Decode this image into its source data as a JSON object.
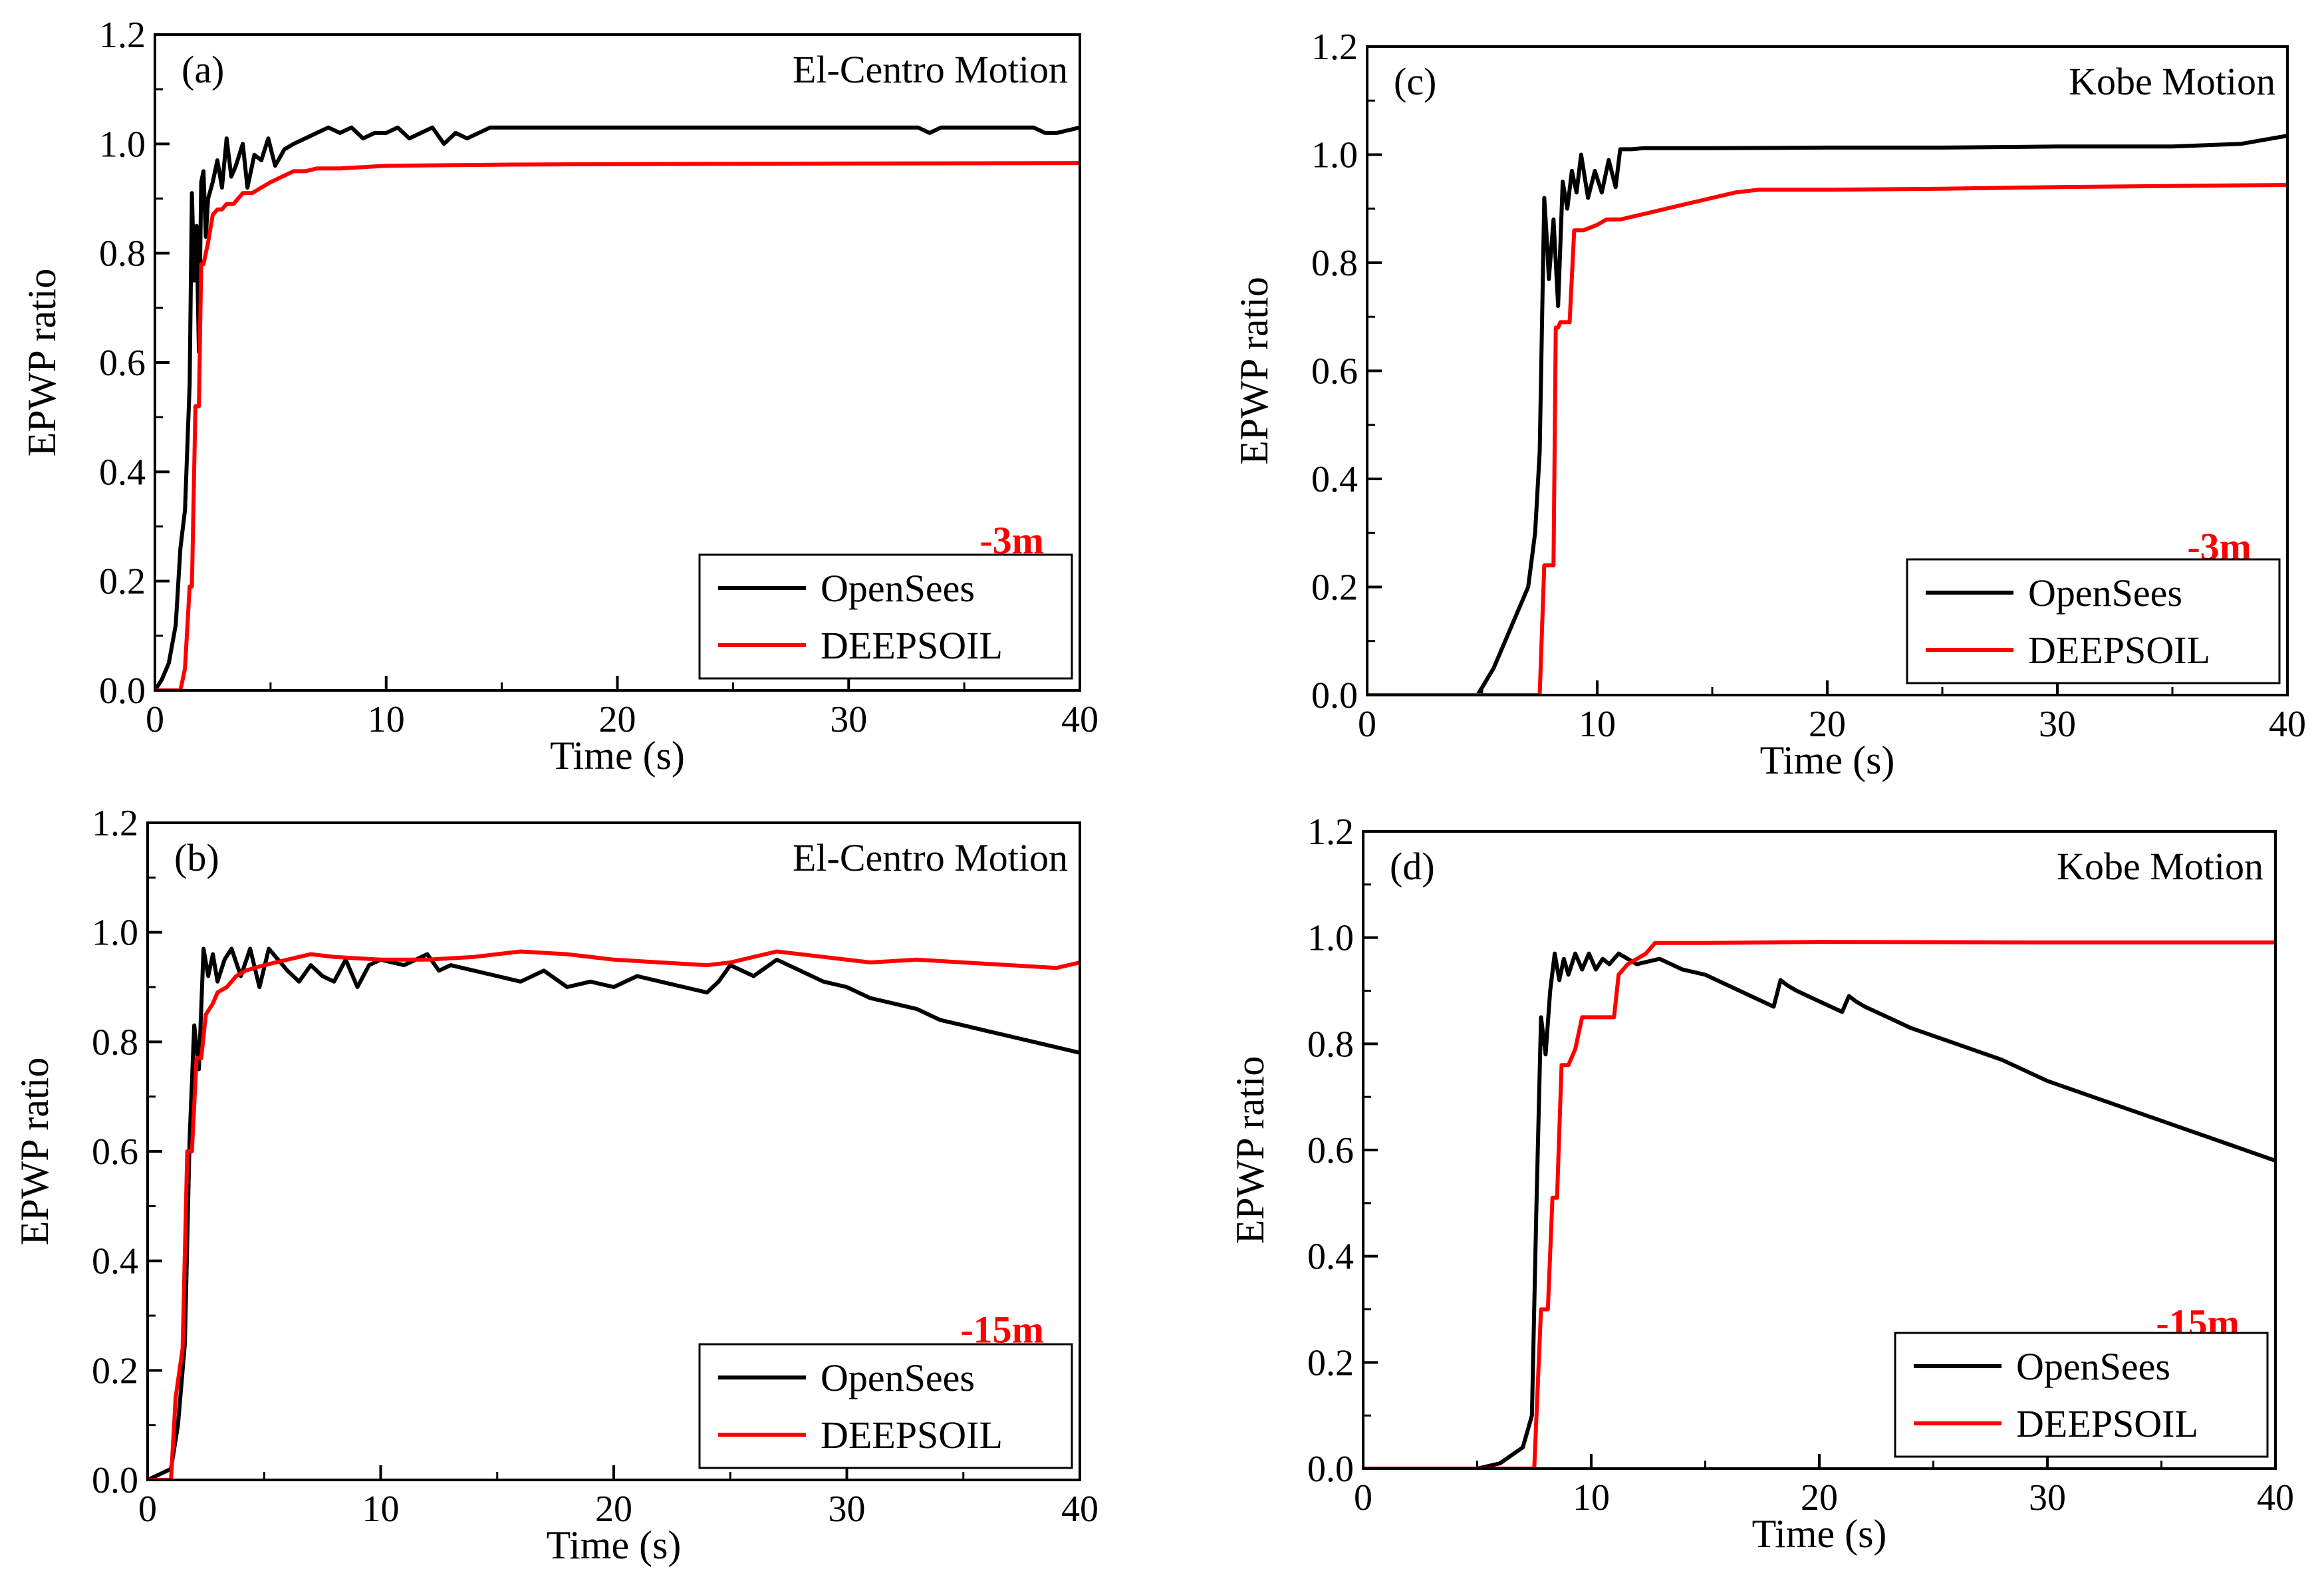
{
  "figure": {
    "series_colors": {
      "OpenSees": "#000000",
      "DEEPSOIL": "#ff0000"
    },
    "label_color": "#ff0000"
  },
  "chart_data": [
    {
      "type": "line",
      "panel": "(a)",
      "title": "El-Centro Motion",
      "depth_label": "-3m",
      "xlabel": "Time (s)",
      "ylabel": "EPWP ratio",
      "xlim": [
        0,
        40
      ],
      "ylim": [
        0,
        1.2
      ],
      "xticks": [
        0,
        10,
        20,
        30,
        40
      ],
      "yticks": [
        0.0,
        0.2,
        0.4,
        0.6,
        0.8,
        1.0,
        1.2
      ],
      "ytick_labels": [
        "0.0",
        "0.2",
        "0.4",
        "0.6",
        "0.8",
        "1.0",
        "1.2"
      ],
      "legend": "bottom-right",
      "series": [
        {
          "name": "OpenSees",
          "x": [
            0,
            0.3,
            0.6,
            0.9,
            1.1,
            1.3,
            1.5,
            1.6,
            1.7,
            1.8,
            1.9,
            2.0,
            2.1,
            2.2,
            2.3,
            2.5,
            2.7,
            2.9,
            3.1,
            3.3,
            3.5,
            3.8,
            4.0,
            4.3,
            4.6,
            4.9,
            5.2,
            5.6,
            6.0,
            6.5,
            7.0,
            7.5,
            8.0,
            8.5,
            9.0,
            9.5,
            10.0,
            10.5,
            11.0,
            11.5,
            12.0,
            12.5,
            13.0,
            13.5,
            14.0,
            14.5,
            15.0,
            20.0,
            25.0,
            30.0,
            33.0,
            33.5,
            34.0,
            38.0,
            38.5,
            39.0,
            40.0
          ],
          "values": [
            0.0,
            0.02,
            0.05,
            0.12,
            0.26,
            0.33,
            0.56,
            0.91,
            0.75,
            0.85,
            0.62,
            0.93,
            0.95,
            0.83,
            0.9,
            0.93,
            0.97,
            0.92,
            1.01,
            0.94,
            0.96,
            1.0,
            0.92,
            0.98,
            0.97,
            1.01,
            0.96,
            0.99,
            1.0,
            1.01,
            1.02,
            1.03,
            1.02,
            1.03,
            1.01,
            1.02,
            1.02,
            1.03,
            1.01,
            1.02,
            1.03,
            1.0,
            1.02,
            1.01,
            1.02,
            1.03,
            1.03,
            1.03,
            1.03,
            1.03,
            1.03,
            1.02,
            1.03,
            1.03,
            1.02,
            1.02,
            1.03
          ]
        },
        {
          "name": "DEEPSOIL",
          "x": [
            0,
            1.1,
            1.3,
            1.5,
            1.6,
            1.75,
            1.9,
            2.0,
            2.1,
            2.3,
            2.5,
            2.7,
            2.9,
            3.1,
            3.4,
            3.8,
            4.2,
            4.6,
            5.0,
            5.5,
            6.0,
            6.5,
            7.0,
            8.0,
            10.0,
            15.0,
            20.0,
            30.0,
            40.0
          ],
          "values": [
            0.0,
            0.0,
            0.04,
            0.19,
            0.19,
            0.52,
            0.52,
            0.78,
            0.78,
            0.82,
            0.87,
            0.88,
            0.88,
            0.89,
            0.89,
            0.91,
            0.91,
            0.92,
            0.93,
            0.94,
            0.95,
            0.95,
            0.955,
            0.955,
            0.96,
            0.962,
            0.963,
            0.964,
            0.965
          ]
        }
      ]
    },
    {
      "type": "line",
      "panel": "(b)",
      "title": "El-Centro Motion",
      "depth_label": "-15m",
      "xlabel": "Time (s)",
      "ylabel": "EPWP ratio",
      "xlim": [
        0,
        40
      ],
      "ylim": [
        0,
        1.2
      ],
      "xticks": [
        0,
        10,
        20,
        30,
        40
      ],
      "yticks": [
        0.0,
        0.2,
        0.4,
        0.6,
        0.8,
        1.0,
        1.2
      ],
      "ytick_labels": [
        "0.0",
        "0.2",
        "0.4",
        "0.6",
        "0.8",
        "1.0",
        "1.2"
      ],
      "legend": "bottom-right",
      "series": [
        {
          "name": "OpenSees",
          "x": [
            0,
            0.5,
            1.0,
            1.3,
            1.6,
            1.8,
            2.0,
            2.2,
            2.4,
            2.6,
            2.8,
            3.0,
            3.3,
            3.6,
            4.0,
            4.4,
            4.8,
            5.2,
            5.6,
            6.0,
            6.5,
            7.0,
            7.5,
            8.0,
            8.5,
            9.0,
            9.5,
            10.0,
            11.0,
            12.0,
            12.5,
            13.0,
            14.0,
            15.0,
            16.0,
            17.0,
            18.0,
            19.0,
            20.0,
            21.0,
            22.0,
            23.0,
            24.0,
            24.5,
            25.0,
            26.0,
            27.0,
            28.0,
            29.0,
            30.0,
            31.0,
            32.0,
            33.0,
            34.0,
            35.0,
            36.0,
            37.0,
            38.0,
            39.0,
            40.0
          ],
          "values": [
            0.0,
            0.01,
            0.02,
            0.1,
            0.25,
            0.62,
            0.83,
            0.75,
            0.97,
            0.92,
            0.96,
            0.91,
            0.95,
            0.97,
            0.92,
            0.97,
            0.9,
            0.97,
            0.95,
            0.93,
            0.91,
            0.94,
            0.92,
            0.91,
            0.95,
            0.9,
            0.94,
            0.95,
            0.94,
            0.96,
            0.93,
            0.94,
            0.93,
            0.92,
            0.91,
            0.93,
            0.9,
            0.91,
            0.9,
            0.92,
            0.91,
            0.9,
            0.89,
            0.91,
            0.94,
            0.92,
            0.95,
            0.93,
            0.91,
            0.9,
            0.88,
            0.87,
            0.86,
            0.84,
            0.83,
            0.82,
            0.81,
            0.8,
            0.79,
            0.78
          ]
        },
        {
          "name": "DEEPSOIL",
          "x": [
            0,
            1.0,
            1.2,
            1.5,
            1.7,
            1.9,
            2.1,
            2.3,
            2.5,
            2.8,
            3.0,
            3.4,
            3.8,
            4.2,
            5.0,
            6.0,
            7.0,
            8.0,
            10.0,
            12.0,
            14.0,
            16.0,
            18.0,
            20.0,
            22.0,
            24.0,
            25.0,
            26.0,
            27.0,
            29.0,
            31.0,
            33.0,
            35.0,
            37.0,
            39.0,
            40.0
          ],
          "values": [
            0.0,
            0.0,
            0.15,
            0.24,
            0.6,
            0.6,
            0.77,
            0.77,
            0.85,
            0.87,
            0.89,
            0.9,
            0.92,
            0.93,
            0.94,
            0.95,
            0.96,
            0.955,
            0.95,
            0.95,
            0.955,
            0.965,
            0.96,
            0.95,
            0.945,
            0.94,
            0.945,
            0.955,
            0.965,
            0.955,
            0.945,
            0.95,
            0.945,
            0.94,
            0.935,
            0.945
          ]
        }
      ]
    },
    {
      "type": "line",
      "panel": "(c)",
      "title": "Kobe Motion",
      "depth_label": "-3m",
      "xlabel": "Time (s)",
      "ylabel": "EPWP ratio",
      "xlim": [
        0,
        40
      ],
      "ylim": [
        0,
        1.2
      ],
      "xticks": [
        0,
        10,
        20,
        30,
        40
      ],
      "yticks": [
        0.0,
        0.2,
        0.4,
        0.6,
        0.8,
        1.0,
        1.2
      ],
      "ytick_labels": [
        "0.0",
        "0.2",
        "0.4",
        "0.6",
        "0.8",
        "1.0",
        "1.2"
      ],
      "legend": "bottom-right",
      "series": [
        {
          "name": "OpenSees",
          "x": [
            0,
            4.8,
            5.5,
            6.0,
            6.5,
            7.0,
            7.3,
            7.5,
            7.7,
            7.8,
            7.9,
            8.1,
            8.3,
            8.5,
            8.7,
            8.9,
            9.1,
            9.3,
            9.6,
            9.9,
            10.2,
            10.5,
            10.8,
            11.0,
            11.5,
            12.0,
            15.0,
            20.0,
            25.0,
            30.0,
            35.0,
            38.0,
            40.0
          ],
          "values": [
            0.0,
            0.0,
            0.05,
            0.1,
            0.15,
            0.2,
            0.3,
            0.45,
            0.92,
            0.85,
            0.77,
            0.88,
            0.72,
            0.95,
            0.9,
            0.97,
            0.93,
            1.0,
            0.92,
            0.97,
            0.93,
            0.99,
            0.94,
            1.01,
            1.01,
            1.012,
            1.012,
            1.013,
            1.013,
            1.015,
            1.015,
            1.02,
            1.035
          ]
        },
        {
          "name": "DEEPSOIL",
          "x": [
            0,
            7.5,
            7.7,
            8.1,
            8.2,
            8.3,
            8.4,
            8.8,
            9.0,
            9.4,
            10.0,
            10.4,
            11.0,
            12.0,
            13.0,
            14.0,
            15.0,
            16.0,
            17.0,
            20.0,
            25.0,
            30.0,
            35.0,
            40.0
          ],
          "values": [
            0.0,
            0.0,
            0.24,
            0.24,
            0.68,
            0.68,
            0.69,
            0.69,
            0.86,
            0.86,
            0.87,
            0.88,
            0.88,
            0.89,
            0.9,
            0.91,
            0.92,
            0.93,
            0.935,
            0.935,
            0.937,
            0.94,
            0.942,
            0.944
          ]
        }
      ]
    },
    {
      "type": "line",
      "panel": "(d)",
      "title": "Kobe Motion",
      "depth_label": "-15m",
      "xlabel": "Time (s)",
      "ylabel": "EPWP ratio",
      "xlim": [
        0,
        40
      ],
      "ylim": [
        0,
        1.2
      ],
      "xticks": [
        0,
        10,
        20,
        30,
        40
      ],
      "yticks": [
        0.0,
        0.2,
        0.4,
        0.6,
        0.8,
        1.0,
        1.2
      ],
      "ytick_labels": [
        "0.0",
        "0.2",
        "0.4",
        "0.6",
        "0.8",
        "1.0",
        "1.2"
      ],
      "legend": "bottom-right",
      "series": [
        {
          "name": "OpenSees",
          "x": [
            0,
            5.0,
            6.0,
            7.0,
            7.4,
            7.6,
            7.8,
            8.0,
            8.2,
            8.4,
            8.6,
            8.8,
            9.0,
            9.3,
            9.6,
            9.9,
            10.2,
            10.5,
            10.8,
            11.2,
            11.6,
            12.0,
            13.0,
            14.0,
            15.0,
            16.0,
            17.0,
            18.0,
            18.3,
            18.6,
            19.0,
            20.0,
            21.0,
            21.3,
            21.6,
            22.0,
            23.0,
            24.0,
            26.0,
            28.0,
            30.0,
            32.0,
            34.0,
            36.0,
            38.0,
            40.0
          ],
          "values": [
            0.0,
            0.0,
            0.01,
            0.04,
            0.1,
            0.5,
            0.85,
            0.78,
            0.9,
            0.97,
            0.92,
            0.96,
            0.93,
            0.97,
            0.94,
            0.97,
            0.94,
            0.96,
            0.95,
            0.97,
            0.96,
            0.95,
            0.96,
            0.94,
            0.93,
            0.91,
            0.89,
            0.87,
            0.92,
            0.91,
            0.9,
            0.88,
            0.86,
            0.89,
            0.88,
            0.87,
            0.85,
            0.83,
            0.8,
            0.77,
            0.73,
            0.7,
            0.67,
            0.64,
            0.61,
            0.58
          ]
        },
        {
          "name": "DEEPSOIL",
          "x": [
            0,
            7.5,
            7.8,
            8.1,
            8.3,
            8.5,
            8.7,
            9.0,
            9.3,
            9.6,
            10.0,
            10.5,
            11.0,
            11.2,
            11.6,
            12.0,
            12.4,
            12.8,
            13.2,
            15.0,
            20.0,
            30.0,
            40.0
          ],
          "values": [
            0.0,
            0.0,
            0.3,
            0.3,
            0.51,
            0.51,
            0.76,
            0.76,
            0.79,
            0.85,
            0.85,
            0.85,
            0.85,
            0.93,
            0.95,
            0.96,
            0.97,
            0.99,
            0.99,
            0.99,
            0.992,
            0.991,
            0.991
          ]
        }
      ]
    }
  ]
}
